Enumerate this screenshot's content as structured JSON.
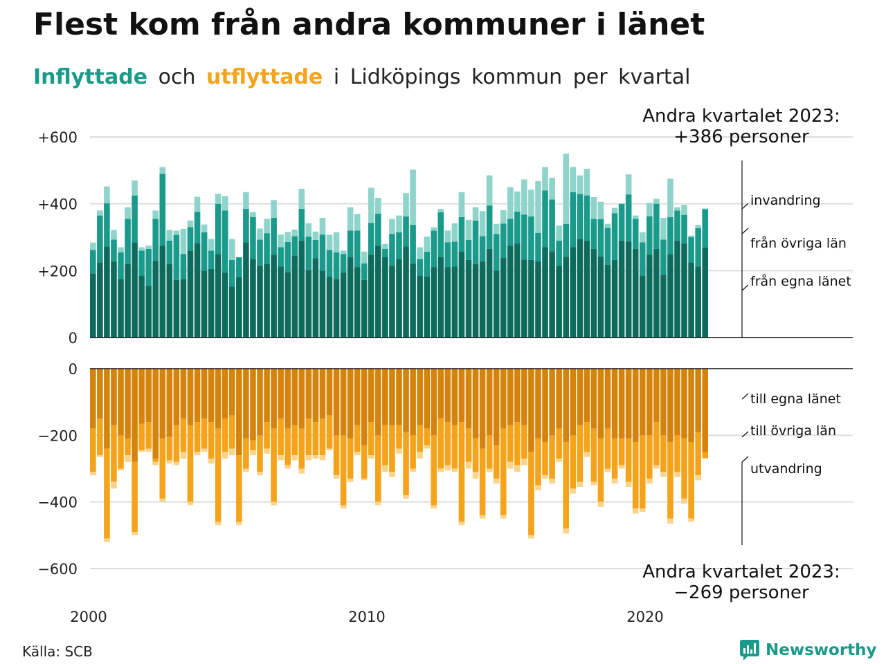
{
  "title": "Flest kom från andra kommuner i länet",
  "subtitle": {
    "in_word": "Inflyttade",
    "and_word": "och",
    "out_word": "utflyttade",
    "rest": "i Lidköpings kommun per kvartal"
  },
  "source": "Källa: SCB",
  "brand": "Newsworthy",
  "colors": {
    "in_own": "#0d6b5e",
    "in_other": "#1a9a8a",
    "in_imm": "#8fd4cb",
    "out_own": "#d4840c",
    "out_other": "#f5a31a",
    "out_emig": "#fbd48c",
    "grid": "#dddddd",
    "text": "#222222"
  },
  "chart_data": {
    "type": "bar",
    "stacked": true,
    "x_start": "2000-Q1",
    "x_ticks": [
      "2000",
      "2010",
      "2020"
    ],
    "top_panel": {
      "ylim": [
        0,
        600
      ],
      "y_ticks": [
        0,
        200,
        400,
        600
      ],
      "y_tick_labels": [
        "0",
        "+200",
        "+400",
        "+600"
      ],
      "series": [
        {
          "name": "från egna länet",
          "values": [
            192,
            225,
            272,
            228,
            175,
            220,
            285,
            185,
            155,
            230,
            275,
            220,
            172,
            175,
            260,
            283,
            200,
            205,
            250,
            195,
            152,
            180,
            285,
            235,
            215,
            220,
            248,
            212,
            196,
            245,
            290,
            202,
            237,
            200,
            182,
            175,
            195,
            240,
            210,
            172,
            248,
            275,
            240,
            215,
            235,
            272,
            222,
            185,
            182,
            210,
            240,
            210,
            212,
            258,
            232,
            220,
            228,
            265,
            200,
            238,
            275,
            282,
            233,
            232,
            228,
            270,
            258,
            215,
            240,
            270,
            295,
            290,
            265,
            242,
            218,
            232,
            290,
            288,
            265,
            185,
            248,
            265,
            188,
            250,
            290,
            282,
            225,
            212,
            269
          ]
        },
        {
          "name": "från övriga län",
          "values": [
            70,
            140,
            130,
            65,
            80,
            135,
            140,
            75,
            110,
            125,
            215,
            70,
            135,
            75,
            70,
            93,
            115,
            55,
            150,
            185,
            80,
            60,
            100,
            125,
            78,
            92,
            110,
            58,
            90,
            58,
            95,
            100,
            55,
            108,
            80,
            80,
            55,
            80,
            110,
            50,
            95,
            96,
            25,
            95,
            80,
            90,
            115,
            50,
            75,
            110,
            135,
            75,
            75,
            102,
            60,
            130,
            75,
            130,
            110,
            103,
            80,
            95,
            135,
            130,
            85,
            170,
            155,
            75,
            100,
            165,
            135,
            135,
            90,
            112,
            110,
            140,
            110,
            140,
            90,
            100,
            115,
            135,
            105,
            110,
            90,
            85,
            75,
            115,
            115
          ]
        },
        {
          "name": "invandring",
          "values": [
            22,
            15,
            50,
            29,
            15,
            35,
            45,
            10,
            10,
            25,
            20,
            32,
            13,
            75,
            20,
            45,
            23,
            35,
            30,
            43,
            63,
            0,
            50,
            15,
            33,
            43,
            53,
            38,
            30,
            20,
            60,
            40,
            25,
            50,
            45,
            60,
            10,
            70,
            50,
            35,
            105,
            47,
            15,
            45,
            50,
            70,
            165,
            35,
            45,
            10,
            10,
            35,
            55,
            75,
            60,
            40,
            75,
            90,
            30,
            40,
            95,
            60,
            105,
            80,
            155,
            70,
            65,
            45,
            210,
            75,
            55,
            80,
            65,
            52,
            12,
            16,
            0,
            60,
            10,
            30,
            40,
            15,
            65,
            115,
            10,
            30,
            5,
            10,
            2
          ]
        }
      ]
    },
    "bottom_panel": {
      "ylim": [
        -600,
        0
      ],
      "y_ticks": [
        0,
        -200,
        -400,
        -600
      ],
      "y_tick_labels": [
        "0",
        "−200",
        "−400",
        "−600"
      ],
      "series": [
        {
          "name": "till egna länet",
          "values": [
            -180,
            -150,
            -240,
            -170,
            -200,
            -210,
            -280,
            -165,
            -160,
            -270,
            -210,
            -205,
            -170,
            -150,
            -170,
            -160,
            -150,
            -160,
            -180,
            -150,
            -140,
            -260,
            -210,
            -215,
            -200,
            -160,
            -180,
            -150,
            -180,
            -170,
            -180,
            -150,
            -160,
            -150,
            -140,
            -200,
            -200,
            -210,
            -170,
            -230,
            -160,
            -200,
            -170,
            -170,
            -170,
            -190,
            -200,
            -170,
            -180,
            -200,
            -150,
            -160,
            -170,
            -160,
            -180,
            -210,
            -240,
            -200,
            -230,
            -180,
            -170,
            -160,
            -170,
            -250,
            -210,
            -220,
            -200,
            -180,
            -220,
            -200,
            -170,
            -160,
            -180,
            -210,
            -180,
            -210,
            -210,
            -210,
            -220,
            -200,
            -200,
            -160,
            -200,
            -220,
            -200,
            -210,
            -220,
            -190,
            -250
          ]
        },
        {
          "name": "till övriga län",
          "values": [
            -130,
            -110,
            -270,
            -170,
            -100,
            -50,
            -210,
            -80,
            -80,
            -10,
            -180,
            -70,
            -110,
            -100,
            -230,
            -90,
            -90,
            -110,
            -280,
            -100,
            -100,
            -200,
            -90,
            -30,
            -110,
            -80,
            -220,
            -110,
            -110,
            -90,
            -120,
            -110,
            -100,
            -110,
            -100,
            -120,
            -210,
            -120,
            -80,
            -100,
            -100,
            -200,
            -120,
            -140,
            -70,
            -190,
            -100,
            -80,
            -50,
            -210,
            -150,
            -130,
            -130,
            -300,
            -100,
            -100,
            -200,
            -100,
            -100,
            -260,
            -110,
            -130,
            -100,
            -250,
            -140,
            -100,
            -130,
            -90,
            -260,
            -160,
            -170,
            -90,
            -160,
            -190,
            -120,
            -120,
            -80,
            -130,
            -200,
            -220,
            -130,
            -130,
            -110,
            -230,
            -110,
            -180,
            -230,
            -130,
            -19
          ]
        },
        {
          "name": "utvandring",
          "values": [
            -10,
            -5,
            -10,
            -20,
            -5,
            -20,
            -10,
            -5,
            -10,
            -10,
            -10,
            -10,
            -10,
            -20,
            -10,
            -10,
            -10,
            -15,
            -10,
            -20,
            -20,
            -10,
            -10,
            -15,
            -10,
            -15,
            -10,
            -15,
            -10,
            -15,
            -15,
            -15,
            -10,
            -15,
            -5,
            -10,
            -10,
            -10,
            -10,
            -5,
            -10,
            -10,
            -20,
            -15,
            -15,
            -10,
            -10,
            -20,
            -10,
            -10,
            -10,
            -15,
            -10,
            -10,
            -20,
            -20,
            -10,
            -10,
            -15,
            -10,
            -20,
            -20,
            -20,
            -10,
            -15,
            -10,
            -15,
            -10,
            -15,
            -15,
            -15,
            -15,
            -10,
            -15,
            -10,
            -15,
            -10,
            -15,
            -15,
            -10,
            -15,
            -10,
            -15,
            -15,
            -15,
            -15,
            -10,
            -15,
            0
          ]
        }
      ]
    },
    "annotations": {
      "top": "Andra kvartalet 2023:\n+386 personer",
      "bottom": "Andra kvartalet 2023:\n−269 personer",
      "labels_in": [
        "invandring",
        "från övriga län",
        "från egna länet"
      ],
      "labels_out": [
        "till egna länet",
        "till övriga län",
        "utvandring"
      ]
    }
  }
}
